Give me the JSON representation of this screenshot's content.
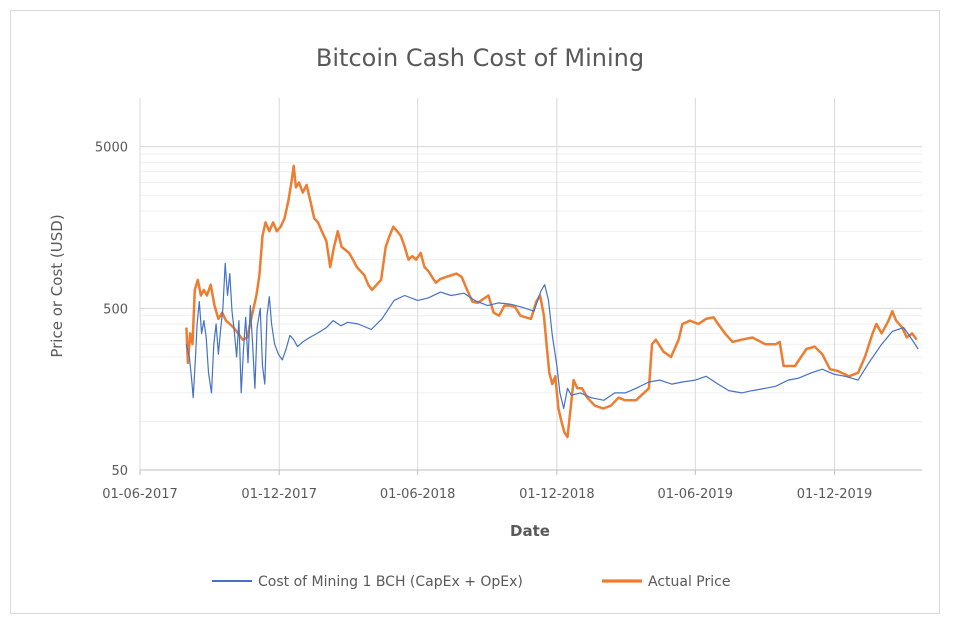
{
  "chart_data": {
    "type": "line",
    "title": "Bitcoin Cash Cost of Mining",
    "xlabel": "Date",
    "ylabel": "Price or Cost (USD)",
    "yscale": "log",
    "ylim": [
      50,
      10000
    ],
    "xlim": [
      "2017-06-01",
      "2020-03-25"
    ],
    "x_tick_labels": [
      "01-06-2017",
      "01-12-2017",
      "01-06-2018",
      "01-12-2018",
      "01-06-2019",
      "01-12-2019"
    ],
    "x_ticks": [
      "2017-06-01",
      "2017-12-01",
      "2018-06-01",
      "2018-12-01",
      "2019-06-01",
      "2019-12-01"
    ],
    "y_tick_labels": [
      "50",
      "500",
      "5000"
    ],
    "y_ticks": [
      50,
      500,
      5000
    ],
    "grid": true,
    "legend_position": "bottom",
    "series": [
      {
        "name": "Cost of Mining 1 BCH (CapEx + OpEx)",
        "color": "#4472c4",
        "points": [
          [
            "2017-08-01",
            300
          ],
          [
            "2017-08-05",
            250
          ],
          [
            "2017-08-08",
            180
          ],
          [
            "2017-08-10",
            140
          ],
          [
            "2017-08-13",
            250
          ],
          [
            "2017-08-15",
            400
          ],
          [
            "2017-08-18",
            550
          ],
          [
            "2017-08-21",
            350
          ],
          [
            "2017-08-24",
            420
          ],
          [
            "2017-08-27",
            330
          ],
          [
            "2017-08-30",
            200
          ],
          [
            "2017-09-03",
            150
          ],
          [
            "2017-09-06",
            300
          ],
          [
            "2017-09-09",
            400
          ],
          [
            "2017-09-12",
            260
          ],
          [
            "2017-09-15",
            370
          ],
          [
            "2017-09-18",
            500
          ],
          [
            "2017-09-21",
            950
          ],
          [
            "2017-09-24",
            600
          ],
          [
            "2017-09-27",
            820
          ],
          [
            "2017-09-30",
            480
          ],
          [
            "2017-10-03",
            360
          ],
          [
            "2017-10-06",
            250
          ],
          [
            "2017-10-09",
            420
          ],
          [
            "2017-10-12",
            150
          ],
          [
            "2017-10-15",
            280
          ],
          [
            "2017-10-18",
            440
          ],
          [
            "2017-10-21",
            230
          ],
          [
            "2017-10-24",
            520
          ],
          [
            "2017-10-27",
            300
          ],
          [
            "2017-10-30",
            160
          ],
          [
            "2017-11-02",
            380
          ],
          [
            "2017-11-06",
            500
          ],
          [
            "2017-11-09",
            220
          ],
          [
            "2017-11-12",
            170
          ],
          [
            "2017-11-15",
            450
          ],
          [
            "2017-11-18",
            590
          ],
          [
            "2017-11-21",
            400
          ],
          [
            "2017-11-25",
            300
          ],
          [
            "2017-11-30",
            260
          ],
          [
            "2017-12-05",
            240
          ],
          [
            "2017-12-10",
            280
          ],
          [
            "2017-12-15",
            340
          ],
          [
            "2017-12-20",
            320
          ],
          [
            "2017-12-25",
            290
          ],
          [
            "2018-01-01",
            310
          ],
          [
            "2018-01-10",
            330
          ],
          [
            "2018-01-20",
            350
          ],
          [
            "2018-02-01",
            380
          ],
          [
            "2018-02-10",
            420
          ],
          [
            "2018-02-20",
            390
          ],
          [
            "2018-03-01",
            410
          ],
          [
            "2018-03-15",
            400
          ],
          [
            "2018-04-01",
            370
          ],
          [
            "2018-04-15",
            430
          ],
          [
            "2018-05-01",
            560
          ],
          [
            "2018-05-15",
            600
          ],
          [
            "2018-06-01",
            560
          ],
          [
            "2018-06-15",
            580
          ],
          [
            "2018-07-01",
            630
          ],
          [
            "2018-07-15",
            600
          ],
          [
            "2018-08-01",
            620
          ],
          [
            "2018-08-15",
            560
          ],
          [
            "2018-09-01",
            520
          ],
          [
            "2018-09-15",
            540
          ],
          [
            "2018-10-01",
            530
          ],
          [
            "2018-10-15",
            510
          ],
          [
            "2018-11-01",
            480
          ],
          [
            "2018-11-10",
            640
          ],
          [
            "2018-11-15",
            700
          ],
          [
            "2018-11-20",
            560
          ],
          [
            "2018-11-25",
            340
          ],
          [
            "2018-12-01",
            220
          ],
          [
            "2018-12-05",
            150
          ],
          [
            "2018-12-10",
            120
          ],
          [
            "2018-12-15",
            160
          ],
          [
            "2018-12-20",
            145
          ],
          [
            "2019-01-01",
            150
          ],
          [
            "2019-01-15",
            140
          ],
          [
            "2019-02-01",
            135
          ],
          [
            "2019-02-15",
            150
          ],
          [
            "2019-03-01",
            150
          ],
          [
            "2019-03-15",
            160
          ],
          [
            "2019-04-01",
            175
          ],
          [
            "2019-04-15",
            180
          ],
          [
            "2019-05-01",
            170
          ],
          [
            "2019-05-15",
            175
          ],
          [
            "2019-06-01",
            180
          ],
          [
            "2019-06-15",
            190
          ],
          [
            "2019-07-01",
            170
          ],
          [
            "2019-07-15",
            155
          ],
          [
            "2019-08-01",
            150
          ],
          [
            "2019-08-15",
            155
          ],
          [
            "2019-09-01",
            160
          ],
          [
            "2019-09-15",
            165
          ],
          [
            "2019-10-01",
            180
          ],
          [
            "2019-10-15",
            185
          ],
          [
            "2019-11-01",
            200
          ],
          [
            "2019-11-15",
            210
          ],
          [
            "2019-12-01",
            195
          ],
          [
            "2019-12-15",
            190
          ],
          [
            "2020-01-01",
            180
          ],
          [
            "2020-01-15",
            230
          ],
          [
            "2020-02-01",
            300
          ],
          [
            "2020-02-15",
            360
          ],
          [
            "2020-03-01",
            380
          ],
          [
            "2020-03-10",
            330
          ],
          [
            "2020-03-20",
            280
          ]
        ]
      },
      {
        "name": "Actual Price",
        "color": "#ed7d31",
        "points": [
          [
            "2017-08-01",
            380
          ],
          [
            "2017-08-03",
            230
          ],
          [
            "2017-08-06",
            350
          ],
          [
            "2017-08-09",
            300
          ],
          [
            "2017-08-12",
            650
          ],
          [
            "2017-08-16",
            750
          ],
          [
            "2017-08-20",
            600
          ],
          [
            "2017-08-24",
            650
          ],
          [
            "2017-08-28",
            600
          ],
          [
            "2017-09-02",
            700
          ],
          [
            "2017-09-07",
            520
          ],
          [
            "2017-09-12",
            430
          ],
          [
            "2017-09-17",
            470
          ],
          [
            "2017-09-22",
            420
          ],
          [
            "2017-09-27",
            400
          ],
          [
            "2017-10-02",
            380
          ],
          [
            "2017-10-08",
            350
          ],
          [
            "2017-10-14",
            320
          ],
          [
            "2017-10-20",
            330
          ],
          [
            "2017-10-26",
            450
          ],
          [
            "2017-11-01",
            600
          ],
          [
            "2017-11-05",
            800
          ],
          [
            "2017-11-09",
            1400
          ],
          [
            "2017-11-13",
            1700
          ],
          [
            "2017-11-18",
            1500
          ],
          [
            "2017-11-23",
            1700
          ],
          [
            "2017-11-28",
            1500
          ],
          [
            "2017-12-03",
            1600
          ],
          [
            "2017-12-08",
            1800
          ],
          [
            "2017-12-13",
            2300
          ],
          [
            "2017-12-17",
            3000
          ],
          [
            "2017-12-20",
            3800
          ],
          [
            "2017-12-23",
            2800
          ],
          [
            "2017-12-27",
            3000
          ],
          [
            "2018-01-01",
            2600
          ],
          [
            "2018-01-06",
            2900
          ],
          [
            "2018-01-11",
            2300
          ],
          [
            "2018-01-16",
            1800
          ],
          [
            "2018-01-21",
            1700
          ],
          [
            "2018-01-26",
            1500
          ],
          [
            "2018-02-01",
            1300
          ],
          [
            "2018-02-06",
            900
          ],
          [
            "2018-02-11",
            1200
          ],
          [
            "2018-02-16",
            1500
          ],
          [
            "2018-02-21",
            1200
          ],
          [
            "2018-02-26",
            1150
          ],
          [
            "2018-03-03",
            1100
          ],
          [
            "2018-03-08",
            1000
          ],
          [
            "2018-03-13",
            900
          ],
          [
            "2018-03-18",
            850
          ],
          [
            "2018-03-23",
            800
          ],
          [
            "2018-03-28",
            700
          ],
          [
            "2018-04-02",
            650
          ],
          [
            "2018-04-08",
            700
          ],
          [
            "2018-04-14",
            750
          ],
          [
            "2018-04-20",
            1200
          ],
          [
            "2018-04-25",
            1400
          ],
          [
            "2018-04-30",
            1600
          ],
          [
            "2018-05-05",
            1500
          ],
          [
            "2018-05-10",
            1400
          ],
          [
            "2018-05-15",
            1200
          ],
          [
            "2018-05-20",
            1000
          ],
          [
            "2018-05-25",
            1050
          ],
          [
            "2018-05-30",
            1000
          ],
          [
            "2018-06-05",
            1100
          ],
          [
            "2018-06-10",
            900
          ],
          [
            "2018-06-15",
            850
          ],
          [
            "2018-06-20",
            780
          ],
          [
            "2018-06-25",
            720
          ],
          [
            "2018-07-01",
            760
          ],
          [
            "2018-07-08",
            780
          ],
          [
            "2018-07-15",
            800
          ],
          [
            "2018-07-22",
            820
          ],
          [
            "2018-07-29",
            780
          ],
          [
            "2018-08-05",
            650
          ],
          [
            "2018-08-12",
            550
          ],
          [
            "2018-08-19",
            540
          ],
          [
            "2018-08-26",
            570
          ],
          [
            "2018-09-02",
            600
          ],
          [
            "2018-09-09",
            470
          ],
          [
            "2018-09-16",
            450
          ],
          [
            "2018-09-23",
            520
          ],
          [
            "2018-09-30",
            520
          ],
          [
            "2018-10-07",
            510
          ],
          [
            "2018-10-14",
            450
          ],
          [
            "2018-10-21",
            440
          ],
          [
            "2018-10-28",
            430
          ],
          [
            "2018-11-04",
            550
          ],
          [
            "2018-11-09",
            600
          ],
          [
            "2018-11-14",
            450
          ],
          [
            "2018-11-18",
            280
          ],
          [
            "2018-11-21",
            200
          ],
          [
            "2018-11-25",
            170
          ],
          [
            "2018-11-29",
            190
          ],
          [
            "2018-12-03",
            120
          ],
          [
            "2018-12-07",
            100
          ],
          [
            "2018-12-11",
            85
          ],
          [
            "2018-12-15",
            80
          ],
          [
            "2018-12-19",
            120
          ],
          [
            "2018-12-23",
            180
          ],
          [
            "2018-12-28",
            160
          ],
          [
            "2019-01-03",
            160
          ],
          [
            "2019-01-10",
            140
          ],
          [
            "2019-01-20",
            125
          ],
          [
            "2019-01-31",
            120
          ],
          [
            "2019-02-10",
            125
          ],
          [
            "2019-02-20",
            140
          ],
          [
            "2019-03-01",
            135
          ],
          [
            "2019-03-15",
            135
          ],
          [
            "2019-04-01",
            160
          ],
          [
            "2019-04-05",
            300
          ],
          [
            "2019-04-10",
            320
          ],
          [
            "2019-04-20",
            270
          ],
          [
            "2019-04-30",
            250
          ],
          [
            "2019-05-10",
            320
          ],
          [
            "2019-05-15",
            400
          ],
          [
            "2019-05-25",
            420
          ],
          [
            "2019-06-05",
            400
          ],
          [
            "2019-06-15",
            430
          ],
          [
            "2019-06-25",
            440
          ],
          [
            "2019-07-01",
            400
          ],
          [
            "2019-07-10",
            350
          ],
          [
            "2019-07-20",
            310
          ],
          [
            "2019-08-01",
            320
          ],
          [
            "2019-08-15",
            330
          ],
          [
            "2019-09-01",
            300
          ],
          [
            "2019-09-15",
            300
          ],
          [
            "2019-09-20",
            310
          ],
          [
            "2019-09-25",
            220
          ],
          [
            "2019-10-10",
            220
          ],
          [
            "2019-10-25",
            280
          ],
          [
            "2019-11-05",
            290
          ],
          [
            "2019-11-15",
            260
          ],
          [
            "2019-11-25",
            210
          ],
          [
            "2019-12-05",
            205
          ],
          [
            "2019-12-20",
            190
          ],
          [
            "2020-01-01",
            200
          ],
          [
            "2020-01-10",
            250
          ],
          [
            "2020-01-20",
            350
          ],
          [
            "2020-01-25",
            400
          ],
          [
            "2020-02-01",
            350
          ],
          [
            "2020-02-10",
            420
          ],
          [
            "2020-02-15",
            480
          ],
          [
            "2020-02-20",
            420
          ],
          [
            "2020-02-28",
            380
          ],
          [
            "2020-03-05",
            330
          ],
          [
            "2020-03-12",
            350
          ],
          [
            "2020-03-18",
            320
          ]
        ]
      }
    ]
  }
}
